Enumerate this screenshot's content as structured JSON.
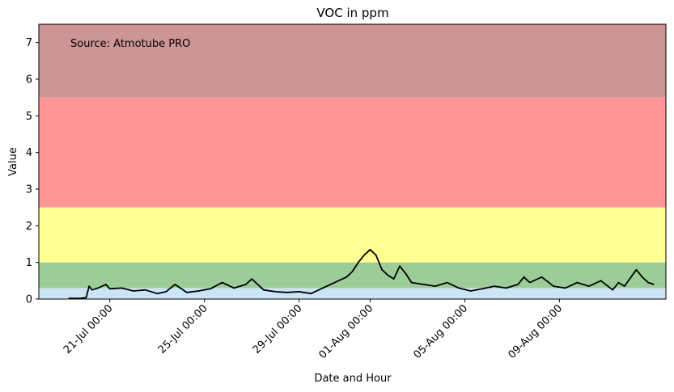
{
  "chart_data": {
    "type": "line",
    "title": "VOC in ppm",
    "xlabel": "Date and Hour",
    "ylabel": "Value",
    "annotation": "Source: Atmotube PRO",
    "ylim": [
      0,
      7.5
    ],
    "y_ticks": [
      0,
      1,
      2,
      3,
      4,
      5,
      6,
      7
    ],
    "x_start": "2024-07-18T00:00",
    "x_end": "2024-08-13T12:00",
    "x_ticks": [
      {
        "date": "2024-07-21T00:00",
        "label": "21-Jul 00:00"
      },
      {
        "date": "2024-07-25T00:00",
        "label": "25-Jul 00:00"
      },
      {
        "date": "2024-07-29T00:00",
        "label": "29-Jul 00:00"
      },
      {
        "date": "2024-08-01T00:00",
        "label": "01-Aug 00:00"
      },
      {
        "date": "2024-08-05T00:00",
        "label": "05-Aug 00:00"
      },
      {
        "date": "2024-08-09T00:00",
        "label": "09-Aug 00:00"
      }
    ],
    "bands": [
      {
        "from": 0,
        "to": 0.3,
        "color": "#cce5f5"
      },
      {
        "from": 0.3,
        "to": 1.0,
        "color": "#9ccc98"
      },
      {
        "from": 1.0,
        "to": 2.5,
        "color": "#ffff94"
      },
      {
        "from": 2.5,
        "to": 5.5,
        "color": "#ff9595"
      },
      {
        "from": 5.5,
        "to": 7.5,
        "color": "#cd9595"
      }
    ],
    "series": [
      {
        "color": "#000000",
        "points": [
          [
            "2024-07-19T06:00",
            0.02
          ],
          [
            "2024-07-19T18:00",
            0.02
          ],
          [
            "2024-07-20T00:00",
            0.04
          ],
          [
            "2024-07-20T03:00",
            0.35
          ],
          [
            "2024-07-20T06:00",
            0.25
          ],
          [
            "2024-07-20T12:00",
            0.3
          ],
          [
            "2024-07-20T20:00",
            0.4
          ],
          [
            "2024-07-21T00:00",
            0.28
          ],
          [
            "2024-07-21T12:00",
            0.3
          ],
          [
            "2024-07-22T00:00",
            0.22
          ],
          [
            "2024-07-22T12:00",
            0.25
          ],
          [
            "2024-07-23T00:00",
            0.15
          ],
          [
            "2024-07-23T09:00",
            0.2
          ],
          [
            "2024-07-23T18:00",
            0.4
          ],
          [
            "2024-07-24T06:00",
            0.18
          ],
          [
            "2024-07-24T18:00",
            0.22
          ],
          [
            "2024-07-25T06:00",
            0.28
          ],
          [
            "2024-07-25T18:00",
            0.45
          ],
          [
            "2024-07-26T06:00",
            0.3
          ],
          [
            "2024-07-26T18:00",
            0.4
          ],
          [
            "2024-07-27T00:00",
            0.55
          ],
          [
            "2024-07-27T12:00",
            0.25
          ],
          [
            "2024-07-28T00:00",
            0.2
          ],
          [
            "2024-07-28T12:00",
            0.18
          ],
          [
            "2024-07-29T00:00",
            0.2
          ],
          [
            "2024-07-29T12:00",
            0.15
          ],
          [
            "2024-07-30T00:00",
            0.3
          ],
          [
            "2024-07-30T12:00",
            0.45
          ],
          [
            "2024-07-31T00:00",
            0.6
          ],
          [
            "2024-07-31T06:00",
            0.75
          ],
          [
            "2024-07-31T12:00",
            1.0
          ],
          [
            "2024-07-31T18:00",
            1.2
          ],
          [
            "2024-08-01T00:00",
            1.35
          ],
          [
            "2024-08-01T06:00",
            1.2
          ],
          [
            "2024-08-01T12:00",
            0.8
          ],
          [
            "2024-08-01T18:00",
            0.65
          ],
          [
            "2024-08-02T00:00",
            0.55
          ],
          [
            "2024-08-02T06:00",
            0.9
          ],
          [
            "2024-08-02T12:00",
            0.7
          ],
          [
            "2024-08-02T18:00",
            0.45
          ],
          [
            "2024-08-03T06:00",
            0.4
          ],
          [
            "2024-08-03T18:00",
            0.35
          ],
          [
            "2024-08-04T06:00",
            0.45
          ],
          [
            "2024-08-04T18:00",
            0.3
          ],
          [
            "2024-08-05T06:00",
            0.22
          ],
          [
            "2024-08-05T18:00",
            0.28
          ],
          [
            "2024-08-06T06:00",
            0.35
          ],
          [
            "2024-08-06T18:00",
            0.3
          ],
          [
            "2024-08-07T06:00",
            0.4
          ],
          [
            "2024-08-07T12:00",
            0.6
          ],
          [
            "2024-08-07T18:00",
            0.45
          ],
          [
            "2024-08-08T06:00",
            0.6
          ],
          [
            "2024-08-08T18:00",
            0.35
          ],
          [
            "2024-08-09T06:00",
            0.3
          ],
          [
            "2024-08-09T18:00",
            0.45
          ],
          [
            "2024-08-10T06:00",
            0.35
          ],
          [
            "2024-08-10T18:00",
            0.5
          ],
          [
            "2024-08-11T06:00",
            0.25
          ],
          [
            "2024-08-11T12:00",
            0.45
          ],
          [
            "2024-08-11T18:00",
            0.35
          ],
          [
            "2024-08-12T06:00",
            0.8
          ],
          [
            "2024-08-12T12:00",
            0.6
          ],
          [
            "2024-08-12T18:00",
            0.45
          ],
          [
            "2024-08-13T00:00",
            0.4
          ]
        ]
      }
    ]
  }
}
